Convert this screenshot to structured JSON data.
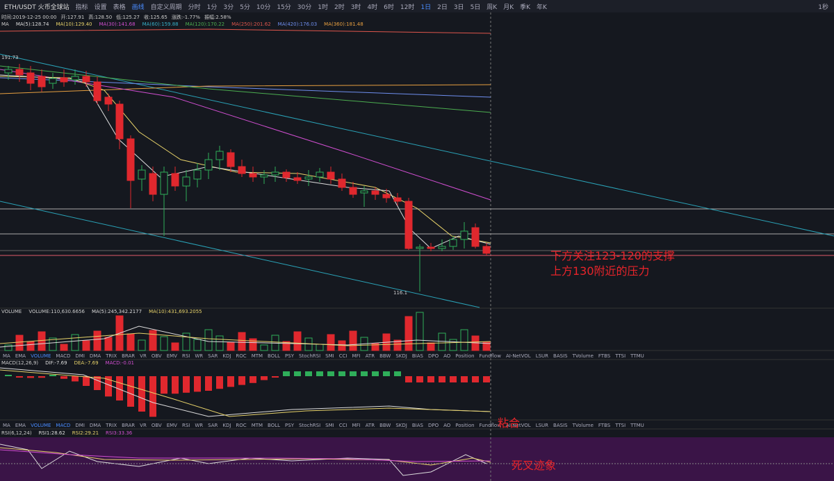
{
  "toolbar": {
    "pair": "ETH/USDT 火币全球站",
    "buttons": [
      "指标",
      "设置",
      "表格",
      "画线",
      "自定义周期"
    ],
    "intervals": [
      "分时",
      "1分",
      "3分",
      "5分",
      "10分",
      "15分",
      "30分",
      "1时",
      "2时",
      "3时",
      "4时",
      "6时",
      "12时",
      "1日",
      "2日",
      "3日",
      "5日",
      "周K",
      "月K",
      "季K",
      "年K"
    ],
    "active_interval": "1日",
    "right": "1秒"
  },
  "info": [
    "时间:2019-12-25 00:00",
    "开:127.91",
    "高:128.50",
    "低:125.27",
    "收:125.65",
    "涨跌:-1.77%",
    "振幅:2.58%"
  ],
  "ma_legend": [
    "MA",
    "MA(5):128.74",
    "MA(10):129.40",
    "MA(30):141.68",
    "MA(60):159.88",
    "MA(120):170.22",
    "MA(250):201.62",
    "MA(420):176.03",
    "MA(360):181.48"
  ],
  "price_labels": {
    "high": "191.73",
    "low": "116.1"
  },
  "annotations": {
    "support": "下方关注123-120的支撑",
    "pressure": "上方130附近的压力",
    "macd_note": "粘合",
    "rsi_note": "死叉迹象"
  },
  "volume_legend": [
    "VOLUME",
    "VOLUME:110,630.6656",
    "MA(5):245,342.2177",
    "MA(10):431,693.2055"
  ],
  "indicator_tabs": [
    "MA",
    "EMA",
    "VOLUME",
    "MACD",
    "DMI",
    "DMA",
    "TRIX",
    "BRAR",
    "VR",
    "OBV",
    "EMV",
    "RSI",
    "WR",
    "SAR",
    "KDJ",
    "ROC",
    "MTM",
    "BOLL",
    "PSY",
    "StochRSI",
    "SMI",
    "CCI",
    "MFI",
    "ATR",
    "BBW",
    "SKDJ",
    "BIAS",
    "DPO",
    "AO",
    "Position",
    "Fundflow",
    "AI-NetVOL",
    "LSUR",
    "BASIS",
    "TVolume",
    "FTBS",
    "TTSI",
    "TTMU"
  ],
  "macd_legend": [
    "MACD(12,26,9)",
    "DIF:-7.69",
    "DEA:-7.69",
    "MACD:-0.01"
  ],
  "rsi_legend": [
    "RSI(6,12,24)",
    "RSI1:28.62",
    "RSI2:29.21",
    "RSI3:33.36"
  ]
}
